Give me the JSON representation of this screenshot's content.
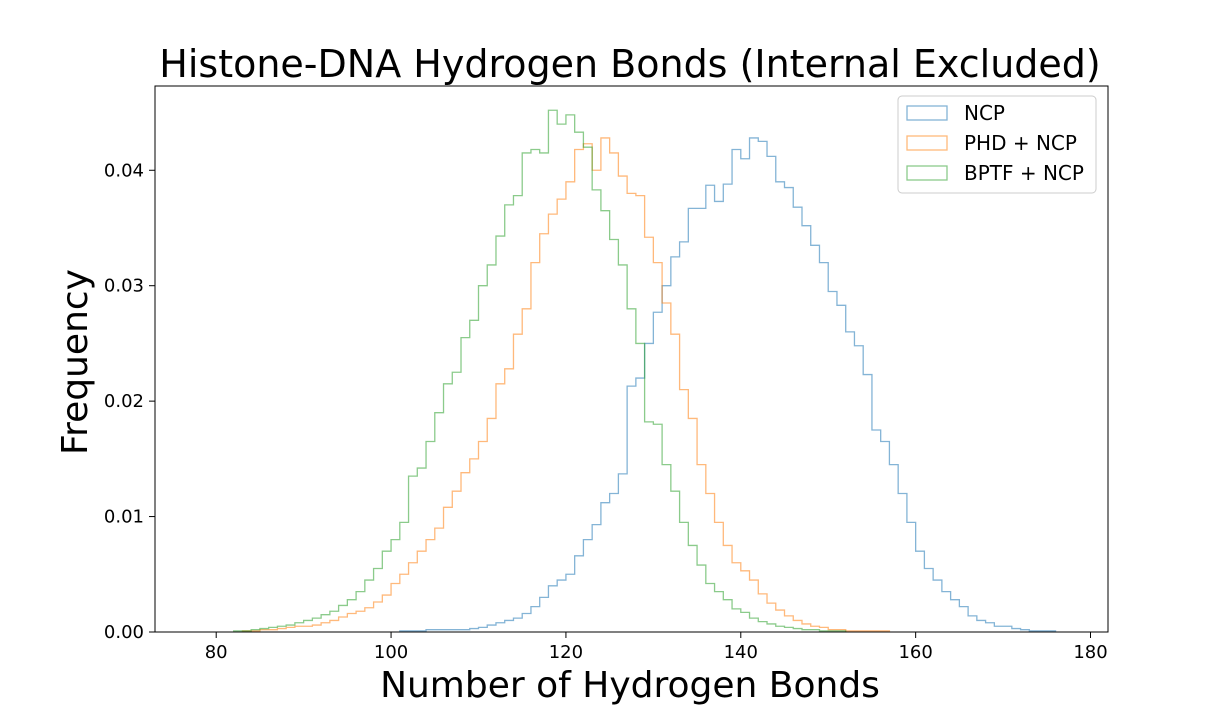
{
  "chart_data": {
    "type": "histogram",
    "title": "Histone-DNA Hydrogen Bonds (Internal Excluded)",
    "xlabel": "Number of Hydrogen Bonds",
    "ylabel": "Frequency",
    "xlim": [
      73,
      182
    ],
    "ylim": [
      0,
      0.0473
    ],
    "xticks": [
      80,
      100,
      120,
      140,
      160,
      180
    ],
    "yticks": [
      0.0,
      0.01,
      0.02,
      0.03,
      0.04
    ],
    "ytick_labels": [
      "0.00",
      "0.01",
      "0.02",
      "0.03",
      "0.04"
    ],
    "grid": false,
    "legend_position": "top-right",
    "bin_width": 1,
    "series": [
      {
        "name": "NCP",
        "color": "#1f77b4",
        "x_start": 101,
        "values": [
          0.0001,
          0.0001,
          0.0001,
          0.0002,
          0.0002,
          0.0002,
          0.0002,
          0.0002,
          0.0003,
          0.0004,
          0.0006,
          0.0008,
          0.001,
          0.0012,
          0.0016,
          0.0022,
          0.003,
          0.004,
          0.0045,
          0.005,
          0.0066,
          0.008,
          0.0093,
          0.0112,
          0.012,
          0.0137,
          0.0213,
          0.022,
          0.025,
          0.0277,
          0.03,
          0.0325,
          0.0338,
          0.0367,
          0.0367,
          0.0387,
          0.0373,
          0.0388,
          0.0418,
          0.041,
          0.0428,
          0.0425,
          0.0412,
          0.039,
          0.0385,
          0.0368,
          0.0352,
          0.0335,
          0.032,
          0.0295,
          0.0283,
          0.026,
          0.0248,
          0.0223,
          0.0175,
          0.0165,
          0.0145,
          0.012,
          0.0095,
          0.007,
          0.0055,
          0.0045,
          0.0035,
          0.0028,
          0.0022,
          0.0014,
          0.001,
          0.0008,
          0.0005,
          0.0005,
          0.0003,
          0.0002,
          0.0001,
          0.0001,
          0.0001
        ]
      },
      {
        "name": "PHD + NCP",
        "color": "#ff7f0e",
        "x_start": 83,
        "values": [
          0.0001,
          0.0001,
          0.0002,
          0.0002,
          0.0003,
          0.0004,
          0.0005,
          0.0005,
          0.0006,
          0.0008,
          0.001,
          0.0013,
          0.0016,
          0.0018,
          0.0021,
          0.0026,
          0.0032,
          0.0042,
          0.005,
          0.006,
          0.007,
          0.008,
          0.009,
          0.0108,
          0.0122,
          0.0138,
          0.015,
          0.0165,
          0.0185,
          0.0215,
          0.0228,
          0.0258,
          0.028,
          0.032,
          0.0345,
          0.0362,
          0.0375,
          0.039,
          0.0418,
          0.0423,
          0.04,
          0.0428,
          0.0415,
          0.0395,
          0.038,
          0.0378,
          0.0342,
          0.032,
          0.0285,
          0.0258,
          0.021,
          0.0185,
          0.0145,
          0.012,
          0.0095,
          0.0075,
          0.006,
          0.0053,
          0.0045,
          0.0033,
          0.0025,
          0.0019,
          0.0014,
          0.001,
          0.0007,
          0.0005,
          0.0004,
          0.0002,
          0.0002,
          0.0001,
          0.0001,
          0.0001,
          0.0001,
          0.0001
        ]
      },
      {
        "name": "BPTF + NCP",
        "color": "#2ca02c",
        "x_start": 82,
        "values": [
          0.0001,
          0.0001,
          0.0002,
          0.0003,
          0.0004,
          0.0005,
          0.0006,
          0.0008,
          0.001,
          0.0012,
          0.0015,
          0.0018,
          0.0023,
          0.0028,
          0.0035,
          0.0045,
          0.0055,
          0.007,
          0.008,
          0.0095,
          0.0135,
          0.0142,
          0.0165,
          0.019,
          0.0215,
          0.0225,
          0.0255,
          0.027,
          0.03,
          0.0318,
          0.0343,
          0.037,
          0.0378,
          0.0415,
          0.0418,
          0.0415,
          0.0452,
          0.044,
          0.0448,
          0.0433,
          0.042,
          0.0383,
          0.0365,
          0.034,
          0.0318,
          0.028,
          0.025,
          0.0182,
          0.018,
          0.0145,
          0.0122,
          0.0095,
          0.0075,
          0.0058,
          0.0042,
          0.0035,
          0.0028,
          0.002,
          0.0017,
          0.0012,
          0.0009,
          0.0007,
          0.0005,
          0.0004,
          0.0003,
          0.0002,
          0.0002,
          0.0001,
          0.0001,
          0.0001
        ]
      }
    ]
  }
}
